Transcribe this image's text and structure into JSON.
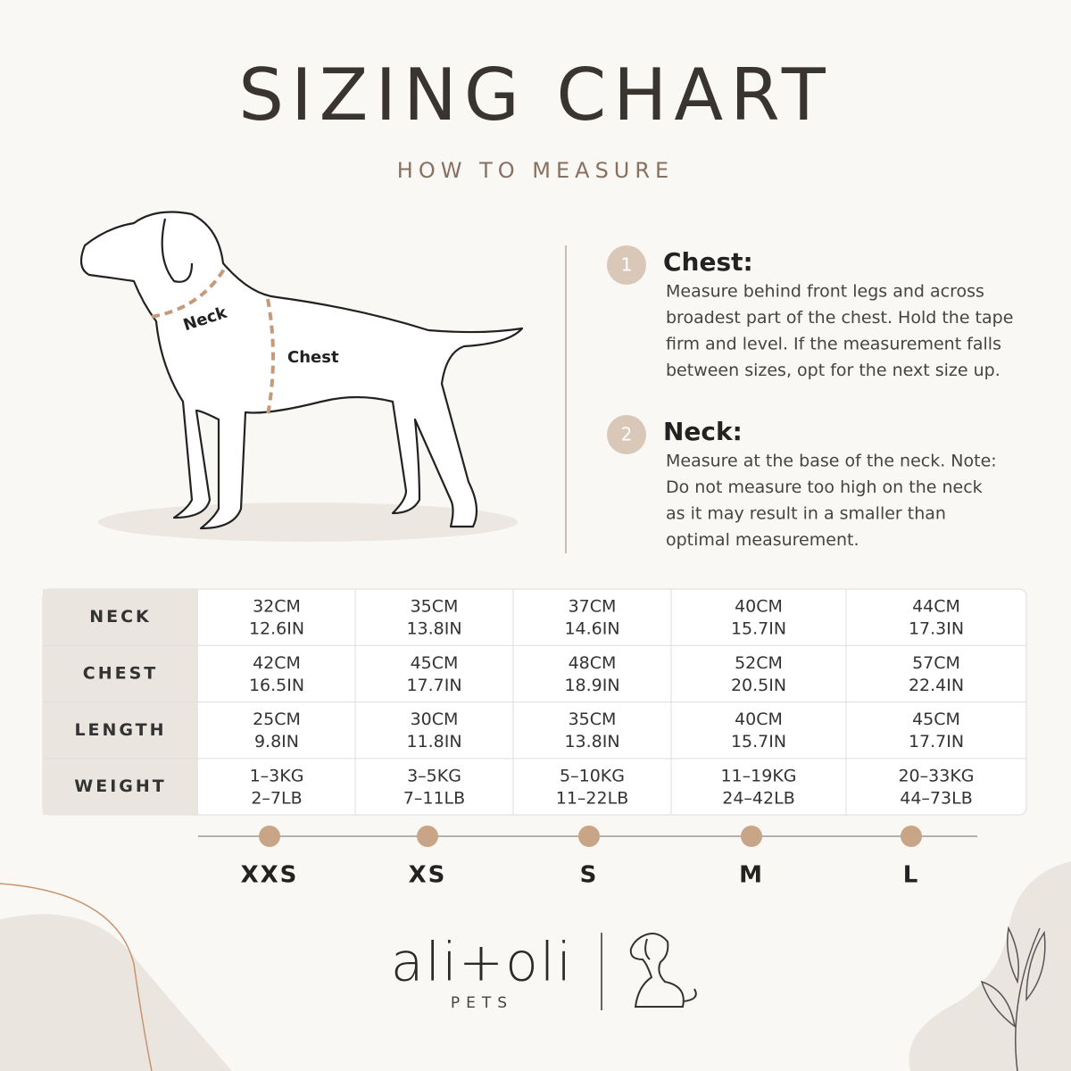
{
  "header": {
    "title": "SIZING CHART",
    "subtitle": "HOW TO MEASURE"
  },
  "diagram": {
    "neck_label": "Neck",
    "chest_label": "Chest"
  },
  "steps": [
    {
      "number": "1",
      "title": "Chest:",
      "lines": [
        "Measure behind front legs and across",
        "broadest part of the chest. Hold the tape",
        "firm and level. If the measurement falls",
        "between sizes, opt for the next size up."
      ]
    },
    {
      "number": "2",
      "title": "Neck:",
      "lines": [
        "Measure at the base of the neck. Note:",
        "Do not measure too high on the neck",
        "as it may result in a smaller than",
        "optimal measurement."
      ]
    }
  ],
  "table": {
    "rows": [
      {
        "label": "NECK",
        "cells": [
          [
            "32CM",
            "12.6IN"
          ],
          [
            "35CM",
            "13.8IN"
          ],
          [
            "37CM",
            "14.6IN"
          ],
          [
            "40CM",
            "15.7IN"
          ],
          [
            "44CM",
            "17.3IN"
          ]
        ]
      },
      {
        "label": "CHEST",
        "cells": [
          [
            "42CM",
            "16.5IN"
          ],
          [
            "45CM",
            "17.7IN"
          ],
          [
            "48CM",
            "18.9IN"
          ],
          [
            "52CM",
            "20.5IN"
          ],
          [
            "57CM",
            "22.4IN"
          ]
        ]
      },
      {
        "label": "LENGTH",
        "cells": [
          [
            "25CM",
            "9.8IN"
          ],
          [
            "30CM",
            "11.8IN"
          ],
          [
            "35CM",
            "13.8IN"
          ],
          [
            "40CM",
            "15.7IN"
          ],
          [
            "45CM",
            "17.7IN"
          ]
        ]
      },
      {
        "label": "WEIGHT",
        "cells": [
          [
            "1–3KG",
            "2–7LB"
          ],
          [
            "3–5KG",
            "7–11LB"
          ],
          [
            "5–10KG",
            "11–22LB"
          ],
          [
            "11–19KG",
            "24–42LB"
          ],
          [
            "20–33KG",
            "44–73LB"
          ]
        ]
      }
    ]
  },
  "sizes": [
    "XXS",
    "XS",
    "S",
    "M",
    "L"
  ],
  "brand": {
    "name": "ali+oli",
    "tagline": "PETS"
  }
}
